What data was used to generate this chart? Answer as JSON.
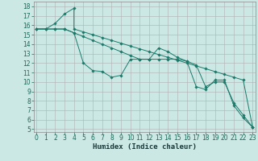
{
  "xlabel": "Humidex (Indice chaleur)",
  "bg_color": "#cce8e4",
  "grid_color": "#b0b0b0",
  "line_color": "#1a7a6a",
  "series": [
    {
      "x": [
        0,
        1,
        2,
        3,
        4,
        4,
        5,
        6,
        7,
        8,
        9,
        10,
        11,
        12,
        13,
        14,
        15,
        16,
        17,
        18,
        19,
        20,
        21,
        22,
        23
      ],
      "y": [
        15.6,
        15.6,
        16.2,
        17.2,
        17.8,
        15.6,
        15.3,
        15.0,
        14.7,
        14.4,
        14.1,
        13.8,
        13.5,
        13.2,
        12.9,
        12.6,
        12.3,
        12.0,
        11.7,
        11.4,
        11.1,
        10.8,
        10.5,
        10.2,
        5.2
      ]
    },
    {
      "x": [
        0,
        1,
        2,
        3,
        4,
        5,
        6,
        7,
        8,
        9,
        10,
        11,
        12,
        13,
        14,
        15,
        16,
        17,
        18,
        19,
        20,
        21,
        22,
        23
      ],
      "y": [
        15.6,
        15.6,
        15.6,
        15.6,
        15.2,
        12.0,
        11.2,
        11.1,
        10.5,
        10.7,
        12.4,
        12.4,
        12.4,
        13.6,
        13.2,
        12.6,
        12.2,
        9.5,
        9.2,
        10.2,
        10.2,
        7.5,
        6.2,
        5.2
      ]
    },
    {
      "x": [
        0,
        1,
        2,
        3,
        4,
        5,
        6,
        7,
        8,
        9,
        10,
        11,
        12,
        13,
        14,
        15,
        16,
        17,
        18,
        19,
        20,
        21,
        22,
        23
      ],
      "y": [
        15.6,
        15.6,
        15.6,
        15.6,
        15.2,
        14.8,
        14.4,
        14.0,
        13.6,
        13.2,
        12.8,
        12.4,
        12.4,
        12.4,
        12.4,
        12.4,
        12.2,
        11.8,
        9.5,
        10.0,
        10.0,
        7.8,
        6.5,
        5.2
      ]
    }
  ],
  "xlim": [
    -0.3,
    23.3
  ],
  "ylim": [
    4.7,
    18.5
  ],
  "yticks": [
    5,
    6,
    7,
    8,
    9,
    10,
    11,
    12,
    13,
    14,
    15,
    16,
    17,
    18
  ],
  "xticks": [
    0,
    1,
    2,
    3,
    4,
    5,
    6,
    7,
    8,
    9,
    10,
    11,
    12,
    13,
    14,
    15,
    16,
    17,
    18,
    19,
    20,
    21,
    22,
    23
  ],
  "tick_fontsize": 5.5,
  "xlabel_fontsize": 6.5,
  "marker_size": 1.8,
  "line_width": 0.7
}
